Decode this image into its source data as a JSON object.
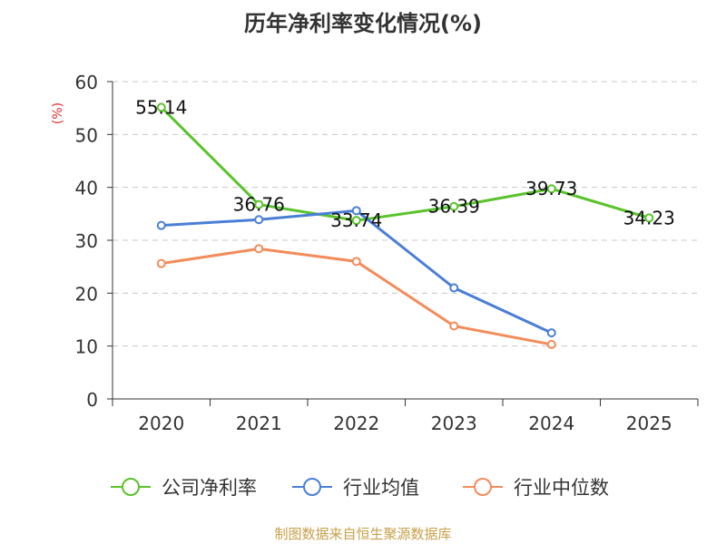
{
  "chart_data": {
    "type": "line",
    "title": "历年净利率变化情况(%)",
    "ylabel": "(%)",
    "xlabel": "",
    "categories": [
      "2020",
      "2021",
      "2022",
      "2023",
      "2024",
      "2025"
    ],
    "ylim": [
      0,
      60
    ],
    "yticks": [
      0,
      10,
      20,
      30,
      40,
      50,
      60
    ],
    "grid": "horizontal dashed",
    "legend_position": "bottom",
    "series": [
      {
        "name": "公司净利率",
        "color": "#5ac32c",
        "values": [
          55.14,
          36.76,
          33.74,
          36.39,
          39.73,
          34.23
        ],
        "labels": [
          "55.14",
          "36.76",
          "33.74",
          "36.39",
          "39.73",
          "34.23"
        ]
      },
      {
        "name": "行业均值",
        "color": "#4a7fd6",
        "values": [
          32.8,
          33.9,
          35.6,
          21.0,
          12.5,
          null
        ]
      },
      {
        "name": "行业中位数",
        "color": "#f28c5a",
        "values": [
          25.6,
          28.4,
          26.0,
          13.8,
          10.3,
          null
        ]
      }
    ]
  },
  "source": "制图数据来自恒生聚源数据库"
}
